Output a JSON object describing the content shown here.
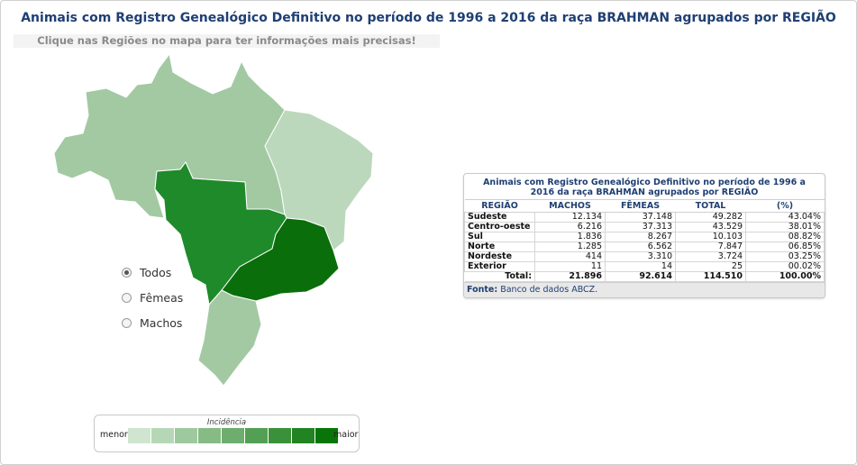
{
  "page": {
    "title": "Animais com Registro Genealógico Definitivo no período de 1996 a 2016 da raça BRAHMAN agrupados por REGIÃO",
    "hint": "Clique nas Regiões no mapa para ter informações mais precisas!"
  },
  "map": {
    "regions": [
      {
        "name": "Norte",
        "color": "#a3c9a3"
      },
      {
        "name": "Nordeste",
        "color": "#bcd8bc"
      },
      {
        "name": "Centro-oeste",
        "color": "#1e8a2a"
      },
      {
        "name": "Sudeste",
        "color": "#0a6e0a"
      },
      {
        "name": "Sul",
        "color": "#a3c9a3"
      }
    ]
  },
  "filters": [
    {
      "label": "Todos",
      "checked": true
    },
    {
      "label": "Fêmeas",
      "checked": false
    },
    {
      "label": "Machos",
      "checked": false
    }
  ],
  "legend": {
    "title": "Incidência",
    "min_label": "menor",
    "max_label": "maior",
    "colors": [
      "#cfe5cf",
      "#b6d7b6",
      "#9ec99e",
      "#86bb86",
      "#6dad6d",
      "#539f53",
      "#3a913a",
      "#218321",
      "#087508"
    ]
  },
  "table": {
    "title": "Animais com Registro Genealógico Definitivo no período de 1996 a 2016 da raça BRAHMAN agrupados por REGIÃO",
    "headers": [
      "REGIÃO",
      "MACHOS",
      "FÊMEAS",
      "TOTAL",
      "(%)"
    ],
    "rows": [
      [
        "Sudeste",
        "12.134",
        "37.148",
        "49.282",
        "43.04%"
      ],
      [
        "Centro-oeste",
        "6.216",
        "37.313",
        "43.529",
        "38.01%"
      ],
      [
        "Sul",
        "1.836",
        "8.267",
        "10.103",
        "08.82%"
      ],
      [
        "Norte",
        "1.285",
        "6.562",
        "7.847",
        "06.85%"
      ],
      [
        "Nordeste",
        "414",
        "3.310",
        "3.724",
        "03.25%"
      ],
      [
        "Exterior",
        "11",
        "14",
        "25",
        "00.02%"
      ]
    ],
    "total": {
      "label": "Total:",
      "machos": "21.896",
      "femeas": "92.614",
      "total": "114.510",
      "pct": "100.00%"
    },
    "source_label": "Fonte:",
    "source_text": "Banco de dados ABCZ."
  }
}
